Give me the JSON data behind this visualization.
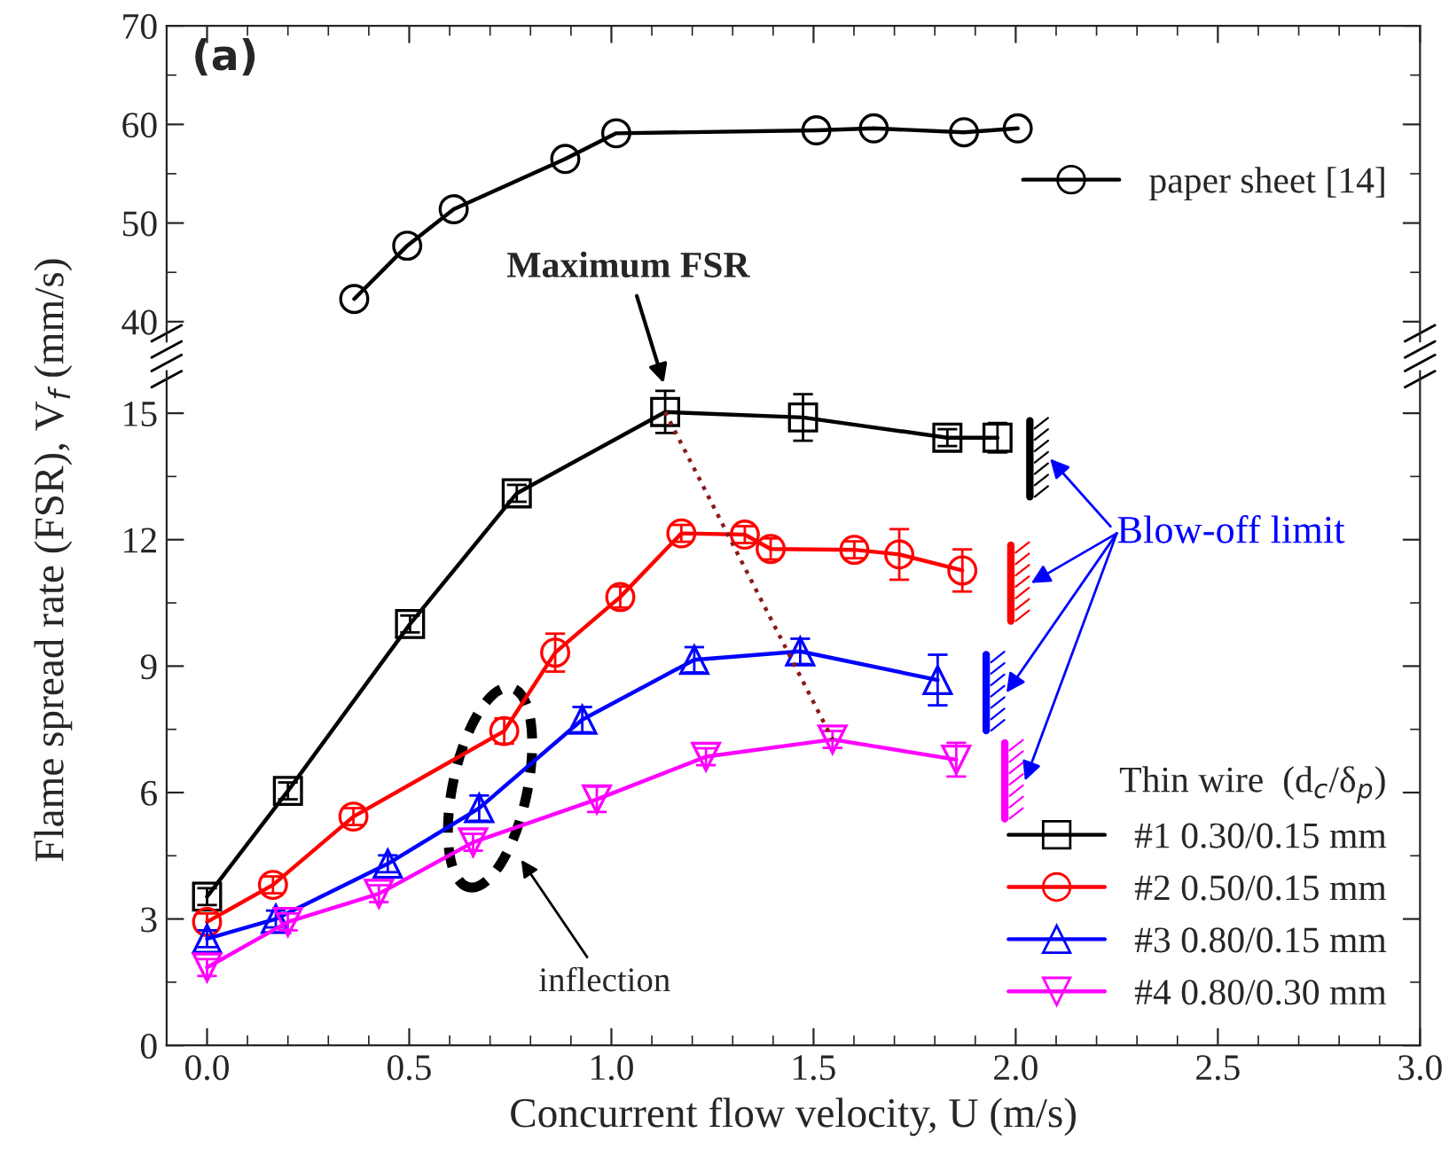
{
  "chart_data": [
    {
      "type": "line",
      "xlim": [
        -0.1,
        3.0
      ],
      "xticks": [
        0,
        0.5,
        1,
        1.5,
        2,
        2.5,
        3
      ],
      "ylim": [
        38,
        70
      ],
      "yticks": [
        40,
        50,
        60,
        70
      ],
      "tick_labels": "y",
      "legend": "right",
      "line_style": "solid",
      "grid": false,
      "annotations": [
        "(a)"
      ],
      "series": [
        {
          "name": "paper sheet [14]",
          "color": "#000000",
          "marker": "circle",
          "x": [
            0.364,
            0.495,
            0.61,
            0.886,
            1.012,
            1.507,
            1.649,
            1.872,
            2.005
          ],
          "values": [
            42.3,
            47.7,
            51.4,
            56.5,
            59.1,
            59.4,
            59.6,
            59.2,
            59.6
          ]
        }
      ]
    },
    {
      "type": "line",
      "xlabel": "Concurrent flow velocity, U (m/s)",
      "ylabel": "Flame spread rate (FSR), V$_{f}$ (mm/s)",
      "legend_title": "Thin wire  (d$_{c}$/δ$_{p}$)",
      "legend": "bottom right",
      "grid": false,
      "line_style": "solid",
      "xlim": [
        -0.1,
        3.0
      ],
      "xticks": [
        {
          "value": 0.0,
          "label": "0.0"
        },
        0.5,
        {
          "value": 1.0,
          "label": "1.0"
        },
        1.5,
        {
          "value": 2.0,
          "label": "2.0"
        },
        2.5,
        {
          "value": 3.0,
          "label": "3.0"
        }
      ],
      "ylim": [
        0,
        16
      ],
      "yticks": [
        0,
        3,
        6,
        9,
        12,
        15
      ],
      "annotations": [
        {
          "text": "Maximum FSR",
          "x": 1.133,
          "y": 15.6
        },
        "inflection",
        "Blow-off limit"
      ],
      "series": [
        {
          "name": "#1 0.30/0.15 mm",
          "color": "#000000",
          "marker": "square",
          "x": [
            0.0,
            0.2,
            0.502,
            0.766,
            1.133,
            1.474,
            1.831,
            1.955
          ],
          "values": [
            3.53,
            6.04,
            10.0,
            13.1,
            15.03,
            14.9,
            14.42,
            14.42
          ],
          "errors": [
            0.2,
            0.2,
            0.2,
            0.2,
            0.5,
            0.55,
            0.2,
            0.35
          ]
        },
        {
          "name": "#2 0.50/0.15 mm",
          "color": "#ff0000",
          "marker": "circle",
          "x": [
            0.0,
            0.163,
            0.362,
            0.735,
            0.861,
            1.022,
            1.173,
            1.33,
            1.394,
            1.601,
            1.712,
            1.868
          ],
          "values": [
            2.93,
            3.81,
            5.43,
            7.46,
            9.32,
            10.64,
            12.15,
            12.12,
            11.78,
            11.76,
            11.65,
            11.27
          ],
          "errors": [
            0.2,
            0.2,
            0.2,
            0.3,
            0.45,
            0.25,
            0.2,
            0.2,
            0.25,
            0.2,
            0.6,
            0.5
          ]
        },
        {
          "name": "#3 0.80/0.15 mm",
          "color": "#0000ff",
          "marker": "triangle",
          "x": [
            0.0,
            0.17,
            0.447,
            0.673,
            0.928,
            1.205,
            1.467,
            1.807
          ],
          "values": [
            2.53,
            3.0,
            4.31,
            5.63,
            7.73,
            9.15,
            9.35,
            8.67
          ],
          "errors": [
            0.2,
            0.2,
            0.2,
            0.3,
            0.3,
            0.3,
            0.3,
            0.6
          ]
        },
        {
          "name": "#4 0.80/0.30 mm",
          "color": "#ff00ff",
          "marker": "triangle_down",
          "x": [
            0.0,
            0.2,
            0.425,
            0.658,
            0.964,
            1.234,
            1.547,
            1.853
          ],
          "values": [
            1.85,
            2.93,
            3.6,
            4.82,
            5.84,
            6.85,
            7.26,
            6.78
          ],
          "errors": [
            0.2,
            0.2,
            0.2,
            0.2,
            0.3,
            0.2,
            0.2,
            0.4
          ]
        },
        {
          "color": "#8b1a1a",
          "marker": "none",
          "line_style": "dotted",
          "x": [
            1.133,
            1.547
          ],
          "values": [
            15.03,
            7.26
          ]
        }
      ]
    }
  ]
}
